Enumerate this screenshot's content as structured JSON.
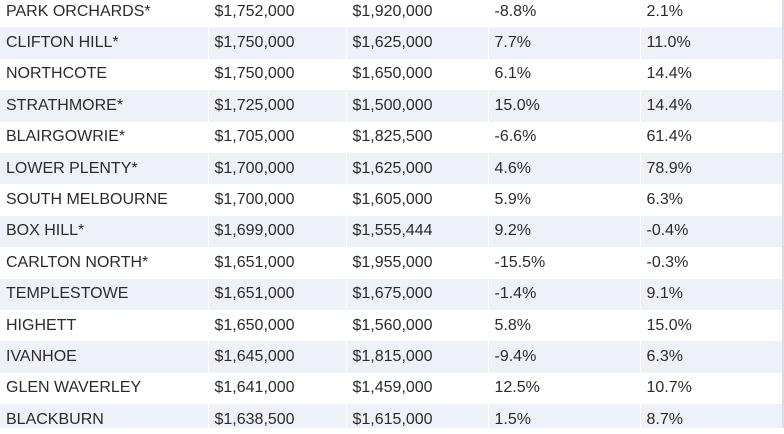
{
  "table": {
    "rows": [
      {
        "suburb": "PARK ORCHARDS*",
        "price_a": "$1,752,000",
        "price_b": "$1,920,000",
        "change_a": "-8.8%",
        "change_b": "2.1%"
      },
      {
        "suburb": "CLIFTON HILL*",
        "price_a": "$1,750,000",
        "price_b": "$1,625,000",
        "change_a": "7.7%",
        "change_b": "11.0%"
      },
      {
        "suburb": "NORTHCOTE",
        "price_a": "$1,750,000",
        "price_b": "$1,650,000",
        "change_a": "6.1%",
        "change_b": "14.4%"
      },
      {
        "suburb": "STRATHMORE*",
        "price_a": "$1,725,000",
        "price_b": "$1,500,000",
        "change_a": "15.0%",
        "change_b": "14.4%"
      },
      {
        "suburb": "BLAIRGOWRIE*",
        "price_a": "$1,705,000",
        "price_b": "$1,825,500",
        "change_a": "-6.6%",
        "change_b": "61.4%"
      },
      {
        "suburb": "LOWER PLENTY*",
        "price_a": "$1,700,000",
        "price_b": "$1,625,000",
        "change_a": "4.6%",
        "change_b": "78.9%"
      },
      {
        "suburb": "SOUTH MELBOURNE",
        "price_a": "$1,700,000",
        "price_b": "$1,605,000",
        "change_a": "5.9%",
        "change_b": "6.3%"
      },
      {
        "suburb": "BOX HILL*",
        "price_a": "$1,699,000",
        "price_b": "$1,555,444",
        "change_a": "9.2%",
        "change_b": "-0.4%"
      },
      {
        "suburb": "CARLTON NORTH*",
        "price_a": "$1,651,000",
        "price_b": "$1,955,000",
        "change_a": "-15.5%",
        "change_b": "-0.3%"
      },
      {
        "suburb": "TEMPLESTOWE",
        "price_a": "$1,651,000",
        "price_b": "$1,675,000",
        "change_a": "-1.4%",
        "change_b": "9.1%"
      },
      {
        "suburb": "HIGHETT",
        "price_a": "$1,650,000",
        "price_b": "$1,560,000",
        "change_a": "5.8%",
        "change_b": "15.0%"
      },
      {
        "suburb": "IVANHOE",
        "price_a": "$1,645,000",
        "price_b": "$1,815,000",
        "change_a": "-9.4%",
        "change_b": "6.3%"
      },
      {
        "suburb": "GLEN WAVERLEY",
        "price_a": "$1,641,000",
        "price_b": "$1,459,000",
        "change_a": "12.5%",
        "change_b": "10.7%"
      },
      {
        "suburb": "BLACKBURN",
        "price_a": "$1,638,500",
        "price_b": "$1,615,000",
        "change_a": "1.5%",
        "change_b": "8.7%"
      }
    ]
  },
  "colors": {
    "row_alt": "#eef2f8",
    "row_base": "#ffffff",
    "text": "#2b2b2b",
    "top_rule": "#4a7ebb"
  }
}
